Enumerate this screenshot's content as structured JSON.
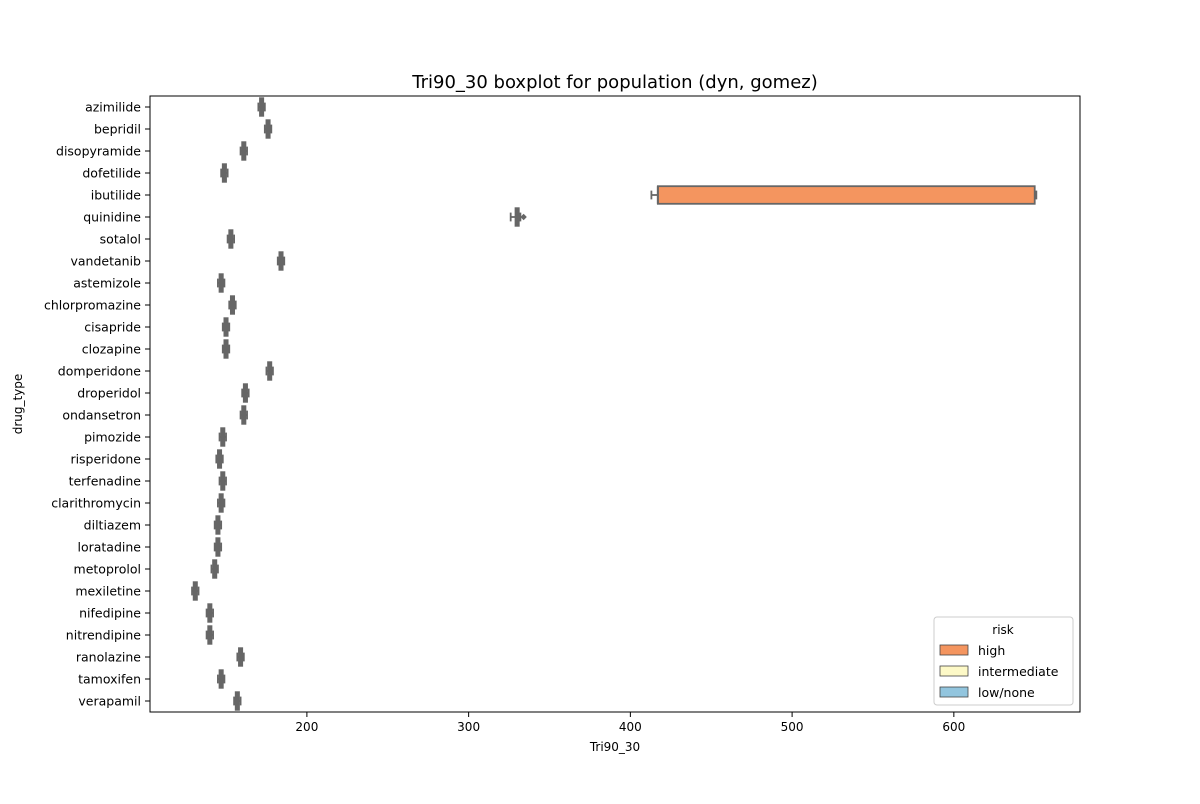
{
  "chart_data": {
    "type": "boxplot",
    "title": "Tri90_30 boxplot for population (dyn, gomez)",
    "xlabel": "Tri90_30",
    "ylabel": "drug_type",
    "xlim": [
      103,
      678
    ],
    "xticks": [
      200,
      300,
      400,
      500,
      600
    ],
    "grid": false,
    "legend": {
      "title": "risk",
      "placement": "lower-right",
      "entries": [
        {
          "label": "high",
          "color": "#f4955f"
        },
        {
          "label": "intermediate",
          "color": "#fdf9c7"
        },
        {
          "label": "low/none",
          "color": "#92c5de"
        }
      ]
    },
    "orientation": "horizontal",
    "edge_color": "#666666",
    "categories": [
      "azimilide",
      "bepridil",
      "disopyramide",
      "dofetilide",
      "ibutilide",
      "quinidine",
      "sotalol",
      "vandetanib",
      "astemizole",
      "chlorpromazine",
      "cisapride",
      "clozapine",
      "domperidone",
      "droperidol",
      "ondansetron",
      "pimozide",
      "risperidone",
      "terfenadine",
      "clarithromycin",
      "diltiazem",
      "loratadine",
      "metoprolol",
      "mexiletine",
      "nifedipine",
      "nitrendipine",
      "ranolazine",
      "tamoxifen",
      "verapamil"
    ],
    "boxes": [
      {
        "drug": "azimilide",
        "whislo": 170,
        "q1": 171,
        "med": 172,
        "q3": 173,
        "whishi": 174,
        "fliers": []
      },
      {
        "drug": "bepridil",
        "whislo": 174,
        "q1": 175,
        "med": 176,
        "q3": 177,
        "whishi": 178,
        "fliers": []
      },
      {
        "drug": "disopyramide",
        "whislo": 159,
        "q1": 160,
        "med": 161,
        "q3": 162,
        "whishi": 163,
        "fliers": []
      },
      {
        "drug": "dofetilide",
        "whislo": 147,
        "q1": 148,
        "med": 149,
        "q3": 150,
        "whishi": 151,
        "fliers": []
      },
      {
        "drug": "ibutilide",
        "risk": "high",
        "whislo": 413,
        "q1": 417,
        "med": 417,
        "q3": 650,
        "whishi": 651,
        "fliers": []
      },
      {
        "drug": "quinidine",
        "whislo": 326,
        "q1": 329,
        "med": 330,
        "q3": 331,
        "whishi": 332,
        "fliers": [
          334
        ]
      },
      {
        "drug": "sotalol",
        "whislo": 151,
        "q1": 152,
        "med": 153,
        "q3": 154,
        "whishi": 155,
        "fliers": []
      },
      {
        "drug": "vandetanib",
        "whislo": 182,
        "q1": 183,
        "med": 184,
        "q3": 185,
        "whishi": 186,
        "fliers": []
      },
      {
        "drug": "astemizole",
        "whislo": 145,
        "q1": 146,
        "med": 147,
        "q3": 148,
        "whishi": 149,
        "fliers": []
      },
      {
        "drug": "chlorpromazine",
        "whislo": 152,
        "q1": 153,
        "med": 154,
        "q3": 155,
        "whishi": 156,
        "fliers": []
      },
      {
        "drug": "cisapride",
        "whislo": 148,
        "q1": 149,
        "med": 150,
        "q3": 151,
        "whishi": 152,
        "fliers": []
      },
      {
        "drug": "clozapine",
        "whislo": 148,
        "q1": 149,
        "med": 150,
        "q3": 151,
        "whishi": 152,
        "fliers": []
      },
      {
        "drug": "domperidone",
        "whislo": 175,
        "q1": 176,
        "med": 177,
        "q3": 178,
        "whishi": 179,
        "fliers": []
      },
      {
        "drug": "droperidol",
        "whislo": 160,
        "q1": 161,
        "med": 162,
        "q3": 163,
        "whishi": 164,
        "fliers": []
      },
      {
        "drug": "ondansetron",
        "whislo": 159,
        "q1": 160,
        "med": 161,
        "q3": 162,
        "whishi": 163,
        "fliers": []
      },
      {
        "drug": "pimozide",
        "whislo": 146,
        "q1": 147,
        "med": 148,
        "q3": 149,
        "whishi": 150,
        "fliers": []
      },
      {
        "drug": "risperidone",
        "whislo": 144,
        "q1": 145,
        "med": 146,
        "q3": 147,
        "whishi": 148,
        "fliers": []
      },
      {
        "drug": "terfenadine",
        "whislo": 146,
        "q1": 147,
        "med": 148,
        "q3": 149,
        "whishi": 150,
        "fliers": []
      },
      {
        "drug": "clarithromycin",
        "whislo": 145,
        "q1": 146,
        "med": 147,
        "q3": 148,
        "whishi": 149,
        "fliers": []
      },
      {
        "drug": "diltiazem",
        "whislo": 143,
        "q1": 144,
        "med": 145,
        "q3": 146,
        "whishi": 147,
        "fliers": []
      },
      {
        "drug": "loratadine",
        "whislo": 143,
        "q1": 144,
        "med": 145,
        "q3": 146,
        "whishi": 147,
        "fliers": []
      },
      {
        "drug": "metoprolol",
        "whislo": 141,
        "q1": 142,
        "med": 143,
        "q3": 144,
        "whishi": 145,
        "fliers": []
      },
      {
        "drug": "mexiletine",
        "whislo": 129,
        "q1": 130,
        "med": 131,
        "q3": 132,
        "whishi": 133,
        "fliers": []
      },
      {
        "drug": "nifedipine",
        "whislo": 138,
        "q1": 139,
        "med": 140,
        "q3": 141,
        "whishi": 142,
        "fliers": []
      },
      {
        "drug": "nitrendipine",
        "whislo": 138,
        "q1": 139,
        "med": 140,
        "q3": 141,
        "whishi": 142,
        "fliers": []
      },
      {
        "drug": "ranolazine",
        "whislo": 157,
        "q1": 158,
        "med": 159,
        "q3": 160,
        "whishi": 161,
        "fliers": []
      },
      {
        "drug": "tamoxifen",
        "whislo": 145,
        "q1": 146,
        "med": 147,
        "q3": 148,
        "whishi": 149,
        "fliers": []
      },
      {
        "drug": "verapamil",
        "whislo": 155,
        "q1": 156,
        "med": 157,
        "q3": 158,
        "whishi": 159,
        "fliers": []
      }
    ]
  }
}
